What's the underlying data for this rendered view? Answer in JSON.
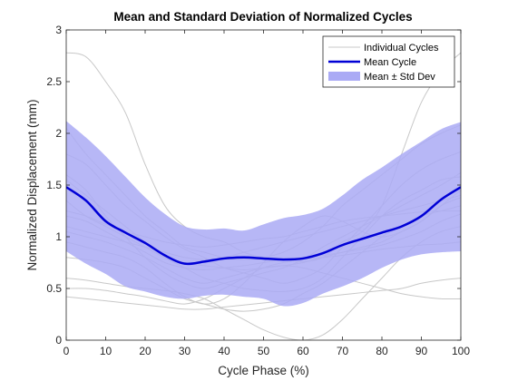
{
  "chart_data": {
    "type": "line",
    "title": "Mean and Standard Deviation of Normalized Cycles",
    "xlabel": "Cycle Phase (%)",
    "ylabel": "Normalized Displacement (mm)",
    "xlim": [
      0,
      100
    ],
    "ylim": [
      0,
      3
    ],
    "xticks": [
      0,
      10,
      20,
      30,
      40,
      50,
      60,
      70,
      80,
      90,
      100
    ],
    "yticks": [
      0,
      0.5,
      1,
      1.5,
      2,
      2.5,
      3
    ],
    "xtick_labels": [
      "0",
      "10",
      "20",
      "30",
      "40",
      "50",
      "60",
      "70",
      "80",
      "90",
      "100"
    ],
    "ytick_labels": [
      "0",
      "0.5",
      "1",
      "1.5",
      "2",
      "2.5",
      "3"
    ],
    "grid": false,
    "legend_position": "top-right",
    "legend": [
      "Individual Cycles",
      "Mean Cycle",
      "Mean ± Std Dev"
    ],
    "colors": {
      "individual": "#c8c8c8",
      "mean": "#0000d6",
      "band": "#aaaaf5",
      "axis": "#262626"
    },
    "x": [
      0,
      5,
      10,
      15,
      20,
      25,
      30,
      35,
      40,
      45,
      50,
      55,
      60,
      65,
      70,
      75,
      80,
      85,
      90,
      95,
      100
    ],
    "mean": [
      1.48,
      1.35,
      1.15,
      1.04,
      0.94,
      0.82,
      0.74,
      0.76,
      0.79,
      0.8,
      0.79,
      0.78,
      0.79,
      0.84,
      0.92,
      0.98,
      1.04,
      1.1,
      1.2,
      1.36,
      1.48
    ],
    "std_upper": [
      2.12,
      1.96,
      1.78,
      1.58,
      1.38,
      1.22,
      1.1,
      1.07,
      1.08,
      1.06,
      1.12,
      1.18,
      1.21,
      1.27,
      1.4,
      1.55,
      1.67,
      1.8,
      1.92,
      2.04,
      2.11
    ],
    "std_lower": [
      0.86,
      0.74,
      0.64,
      0.52,
      0.47,
      0.42,
      0.4,
      0.43,
      0.44,
      0.42,
      0.4,
      0.33,
      0.36,
      0.45,
      0.52,
      0.6,
      0.7,
      0.78,
      0.83,
      0.85,
      0.86
    ],
    "series": [
      {
        "values": [
          2.78,
          2.74,
          2.5,
          2.2,
          1.7,
          1.3,
          1.1,
          1.0,
          0.95,
          0.85,
          0.8,
          0.78,
          0.76,
          0.8,
          0.95,
          1.05,
          1.3,
          1.8,
          2.3,
          2.6,
          2.78
        ]
      },
      {
        "values": [
          2.05,
          1.8,
          1.6,
          1.4,
          1.2,
          1.05,
          0.9,
          0.85,
          0.8,
          0.78,
          0.8,
          0.85,
          0.95,
          1.1,
          1.3,
          1.45,
          1.6,
          1.75,
          1.9,
          2.0,
          2.08
        ]
      },
      {
        "values": [
          1.8,
          1.7,
          1.5,
          1.3,
          1.15,
          1.0,
          0.88,
          0.8,
          0.7,
          0.65,
          0.6,
          0.55,
          0.6,
          0.7,
          0.9,
          1.1,
          1.3,
          1.5,
          1.65,
          1.75,
          1.82
        ]
      },
      {
        "values": [
          1.55,
          1.4,
          1.25,
          1.1,
          0.95,
          0.8,
          0.7,
          0.6,
          0.55,
          0.5,
          0.48,
          0.47,
          0.5,
          0.6,
          0.8,
          1.0,
          1.2,
          1.35,
          1.45,
          1.55,
          1.58
        ]
      },
      {
        "values": [
          1.35,
          1.2,
          1.1,
          1.0,
          0.9,
          0.8,
          0.75,
          0.72,
          0.7,
          0.68,
          0.7,
          0.72,
          0.75,
          0.8,
          0.85,
          0.9,
          0.95,
          1.05,
          1.15,
          1.3,
          1.38
        ]
      },
      {
        "values": [
          1.2,
          1.15,
          1.05,
          0.95,
          0.85,
          0.75,
          0.7,
          0.68,
          0.7,
          0.72,
          0.75,
          0.78,
          0.8,
          0.82,
          0.85,
          0.88,
          0.92,
          0.98,
          1.05,
          1.15,
          1.22
        ]
      },
      {
        "values": [
          1.6,
          1.45,
          1.2,
          1.0,
          0.8,
          0.65,
          0.55,
          0.5,
          0.55,
          0.6,
          0.65,
          0.7,
          0.78,
          0.9,
          1.0,
          1.1,
          1.2,
          1.3,
          1.4,
          1.5,
          1.62
        ]
      },
      {
        "values": [
          1.1,
          1.05,
          1.0,
          0.95,
          0.9,
          0.85,
          0.8,
          0.78,
          0.8,
          0.85,
          0.9,
          0.95,
          1.0,
          1.05,
          1.1,
          1.15,
          1.2,
          1.25,
          1.3,
          1.35,
          1.4
        ]
      },
      {
        "values": [
          0.95,
          0.9,
          0.85,
          0.8,
          0.7,
          0.55,
          0.42,
          0.35,
          0.4,
          0.55,
          0.75,
          0.95,
          1.1,
          1.2,
          1.15,
          1.05,
          1.0,
          1.05,
          1.15,
          1.3,
          1.45
        ]
      },
      {
        "values": [
          0.8,
          0.78,
          0.75,
          0.7,
          0.6,
          0.5,
          0.4,
          0.35,
          0.3,
          0.28,
          0.3,
          0.35,
          0.45,
          0.55,
          0.7,
          0.85,
          1.0,
          1.1,
          1.2,
          1.25,
          1.3
        ]
      },
      {
        "values": [
          0.6,
          0.58,
          0.55,
          0.52,
          0.5,
          0.48,
          0.45,
          0.4,
          0.3,
          0.2,
          0.1,
          0.03,
          0.0,
          0.05,
          0.2,
          0.4,
          0.6,
          0.8,
          0.95,
          1.05,
          1.1
        ]
      },
      {
        "values": [
          0.5,
          0.5,
          0.48,
          0.45,
          0.42,
          0.38,
          0.35,
          0.4,
          0.5,
          0.6,
          0.7,
          0.75,
          0.78,
          0.8,
          0.82,
          0.85,
          0.88,
          0.9,
          0.92,
          0.93,
          0.95
        ]
      },
      {
        "values": [
          0.42,
          0.4,
          0.38,
          0.36,
          0.34,
          0.32,
          0.3,
          0.3,
          0.32,
          0.34,
          0.36,
          0.38,
          0.4,
          0.42,
          0.44,
          0.46,
          0.48,
          0.5,
          0.55,
          0.58,
          0.6
        ]
      },
      {
        "values": [
          1.05,
          1.0,
          0.95,
          0.88,
          0.8,
          0.7,
          0.6,
          0.55,
          0.6,
          0.65,
          0.7,
          0.72,
          0.7,
          0.65,
          0.6,
          0.55,
          0.5,
          0.45,
          0.42,
          0.4,
          0.4
        ]
      },
      {
        "values": [
          1.25,
          1.2,
          1.12,
          1.05,
          1.0,
          0.95,
          0.92,
          0.9,
          0.92,
          0.95,
          0.98,
          1.0,
          1.05,
          1.1,
          1.15,
          1.18,
          1.2,
          1.22,
          1.24,
          1.25,
          1.25
        ]
      }
    ]
  }
}
